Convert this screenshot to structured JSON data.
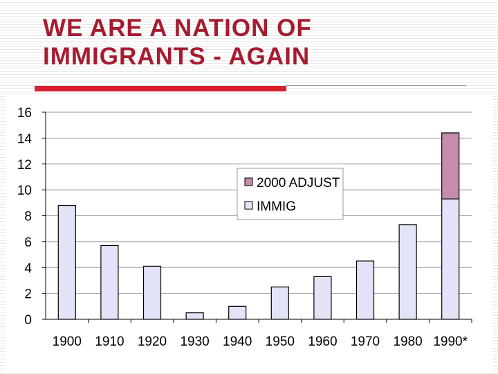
{
  "title": {
    "line1": "WE ARE A NATION OF",
    "line2": "IMMIGRANTS - AGAIN"
  },
  "colors": {
    "title": "#a51c30",
    "rule": "#d8212f",
    "immig": "#e4e4f8",
    "adjust": "#c48cad"
  },
  "chart_data": {
    "type": "bar",
    "stacked": true,
    "categories": [
      "1900",
      "1910",
      "1920",
      "1930",
      "1940",
      "1950",
      "1960",
      "1970",
      "1980",
      "1990*"
    ],
    "series": [
      {
        "name": "IMMIG",
        "values": [
          8.8,
          5.7,
          4.1,
          0.5,
          1.0,
          2.5,
          3.3,
          4.5,
          7.3,
          9.3
        ]
      },
      {
        "name": "2000 ADJUST",
        "values": [
          0,
          0,
          0,
          0,
          0,
          0,
          0,
          0,
          0,
          5.1
        ]
      }
    ],
    "legend": [
      {
        "label": "2000 ADJUST",
        "key": "adjust"
      },
      {
        "label": "IMMIG",
        "key": "immig"
      }
    ],
    "y_ticks": [
      "0",
      "2",
      "4",
      "6",
      "8",
      "10",
      "12",
      "14",
      "16"
    ],
    "ylim": [
      0,
      16
    ],
    "legend_position": "upper-right",
    "grid": true
  }
}
